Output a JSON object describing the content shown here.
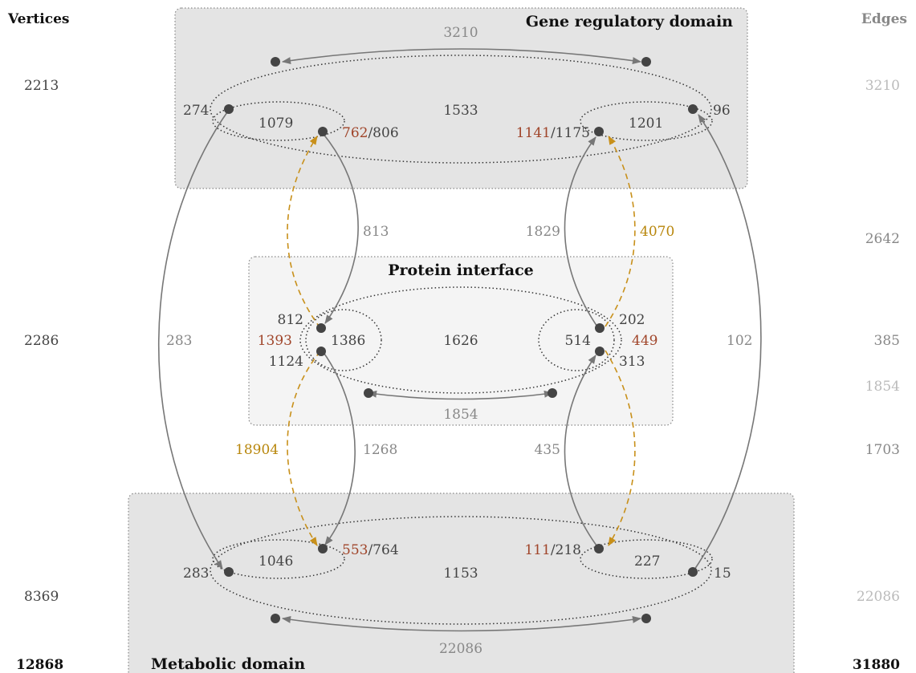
{
  "headers": {
    "vertices": "Vertices",
    "edges": "Edges"
  },
  "domains": {
    "gene": {
      "title": "Gene regulatory domain",
      "vertices": "2213",
      "edges": "3210",
      "top_edge": "3210",
      "left_outer": "274",
      "left_inner": "1079",
      "left_node_red": "762",
      "left_node_total": "/806",
      "center": "1533",
      "right_node_red": "1141",
      "right_node_total": "/1175",
      "right_inner": "1201",
      "right_outer": "96"
    },
    "protein": {
      "title": "Protein interface",
      "vertices": "2286",
      "edges_a": "385",
      "edges_b": "1854",
      "bottom_edge": "1854",
      "left_top": "812",
      "left_red": "1393",
      "left_inner": "1386",
      "left_bottom": "1124",
      "center": "1626",
      "right_inner": "514",
      "right_top": "202",
      "right_red": "449",
      "right_bottom": "313"
    },
    "metabolic": {
      "title": "Metabolic domain",
      "vertices": "8369",
      "edges": "22086",
      "bottom_edge": "22086",
      "left_outer": "283",
      "left_inner": "1046",
      "left_node_red": "553",
      "left_node_total": "/764",
      "center": "1153",
      "right_node_red": "111",
      "right_node_total": "/218",
      "right_inner": "227",
      "right_outer": "15"
    }
  },
  "between": {
    "upper_left": "813",
    "upper_right": "1829",
    "upper_gold": "4070",
    "upper_edges": "2642",
    "lower_left_gold": "18904",
    "lower_left": "1268",
    "lower_right": "435",
    "lower_edges": "1703",
    "far_left": "283",
    "far_right": "102"
  },
  "totals": {
    "vertices": "12868",
    "edges": "31880"
  },
  "colors": {
    "panel": "#e4e4e4",
    "panel_light": "#f4f4f4",
    "red": "#a0452a",
    "gold": "#c8901a",
    "grey": "#888888"
  }
}
